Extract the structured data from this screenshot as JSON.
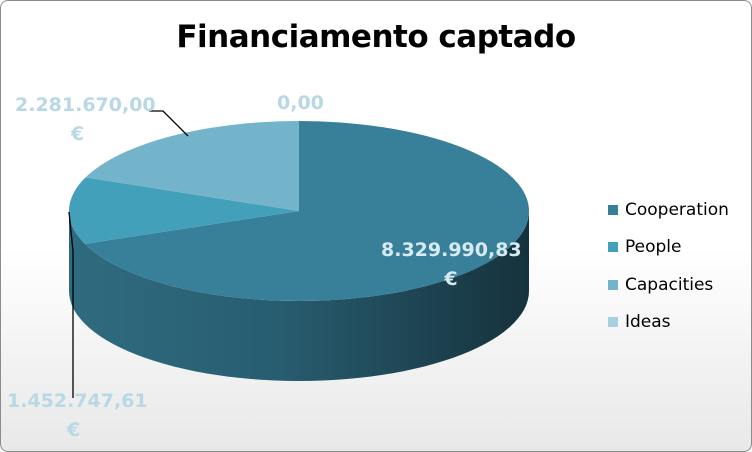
{
  "chart_data": {
    "type": "pie",
    "title": "Financiamento captado",
    "categories": [
      "Cooperation",
      "People",
      "Capacities",
      "Ideas"
    ],
    "values": [
      8329990.83,
      1452747.61,
      2281670.0,
      0.0
    ],
    "value_labels": [
      [
        "8.329.990,83",
        "€"
      ],
      [
        "1.452.747,61",
        "€"
      ],
      [
        "2.281.670,00",
        "€"
      ],
      [
        "0,00",
        ""
      ]
    ],
    "colors": [
      "#38809a",
      "#43a0ba",
      "#74b4cb",
      "#a8cfdf"
    ],
    "label_colors": [
      "#d8eaf1",
      "#b9d8e5",
      "#b9d8e5",
      "#b9d8e5"
    ],
    "legend_position": "right",
    "style": "3D"
  }
}
